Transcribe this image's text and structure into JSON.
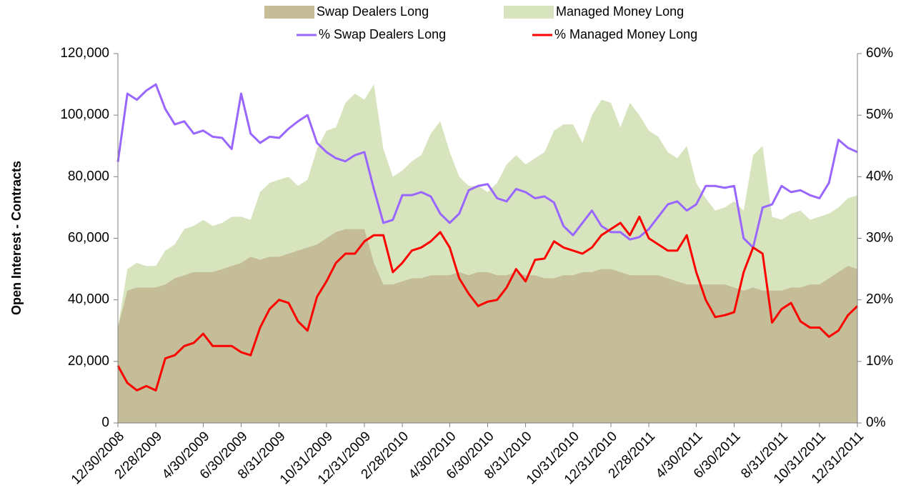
{
  "chart_data": {
    "type": "combo",
    "y_label": "Open Interest - Contracts",
    "legend": "top",
    "categories": [
      "12/30/2008",
      null,
      null,
      null,
      "2/28/2009",
      null,
      null,
      null,
      null,
      "4/30/2009",
      null,
      null,
      null,
      "6/30/2009",
      null,
      null,
      null,
      "8/31/2009",
      null,
      null,
      null,
      null,
      "10/31/2009",
      null,
      null,
      null,
      "12/31/2009",
      null,
      null,
      null,
      "2/28/2010",
      null,
      null,
      null,
      null,
      "4/30/2010",
      null,
      null,
      null,
      "6/30/2010",
      null,
      null,
      null,
      "8/31/2010",
      null,
      null,
      null,
      null,
      "10/31/2010",
      null,
      null,
      null,
      "12/31/2010",
      null,
      null,
      null,
      "2/28/2011",
      null,
      null,
      null,
      null,
      "4/30/2011",
      null,
      null,
      null,
      "6/30/2011",
      null,
      null,
      null,
      null,
      "8/31/2011",
      null,
      null,
      null,
      "10/31/2011",
      null,
      null,
      null,
      "12/31/2011"
    ],
    "series": [
      {
        "name": "Managed Money Long",
        "type": "area",
        "color": "#d7e4bd",
        "values": [
          31000,
          50000,
          52000,
          51000,
          51000,
          56000,
          58000,
          63000,
          64000,
          66000,
          64000,
          65000,
          67000,
          67000,
          66000,
          75000,
          78000,
          79000,
          80000,
          77000,
          79000,
          89000,
          95000,
          96000,
          104000,
          107000,
          105000,
          110000,
          89000,
          80000,
          82000,
          85000,
          87000,
          94000,
          98000,
          88000,
          80000,
          77000,
          77000,
          75000,
          78000,
          84000,
          87000,
          84000,
          86000,
          88000,
          95000,
          97000,
          97000,
          91000,
          100000,
          105000,
          104000,
          96000,
          104000,
          100000,
          95000,
          93000,
          88000,
          86000,
          90000,
          78000,
          73000,
          69000,
          70000,
          72000,
          69000,
          87000,
          90000,
          67000,
          66000,
          68000,
          69000,
          66000,
          67000,
          68000,
          70000,
          73000,
          74000
        ]
      },
      {
        "name": "Swap Dealers Long",
        "type": "area",
        "color": "#c4bd97",
        "values": [
          31000,
          43000,
          44000,
          44000,
          44000,
          45000,
          47000,
          48000,
          49000,
          49000,
          49000,
          50000,
          51000,
          52000,
          54000,
          53000,
          54000,
          54000,
          55000,
          56000,
          57000,
          58000,
          60000,
          62000,
          63000,
          63000,
          63000,
          52000,
          45000,
          45000,
          46000,
          47000,
          47000,
          48000,
          48000,
          48000,
          49000,
          48000,
          49000,
          49000,
          48000,
          48000,
          49000,
          48000,
          48000,
          47000,
          47000,
          48000,
          48000,
          49000,
          49000,
          50000,
          50000,
          49000,
          48000,
          48000,
          48000,
          48000,
          47000,
          46000,
          45000,
          45000,
          45000,
          45000,
          45000,
          44000,
          43000,
          44000,
          43000,
          43000,
          43000,
          44000,
          44000,
          45000,
          45000,
          47000,
          49000,
          51000,
          50000
        ]
      },
      {
        "name": "% Swap Dealers Long",
        "type": "line",
        "axis": "y2",
        "color": "#9966ff",
        "values": [
          42.4,
          53.5,
          52.5,
          54,
          55,
          51,
          48.5,
          49,
          47,
          47.5,
          46.5,
          46.3,
          44.5,
          53.5,
          47,
          45.5,
          46.5,
          46.3,
          47.8,
          49,
          50,
          45.5,
          44,
          43,
          42.5,
          43.5,
          44,
          38,
          32.5,
          33,
          37,
          37,
          37.5,
          36.8,
          34,
          32.5,
          34,
          37.8,
          38.5,
          38.8,
          36.5,
          36,
          38,
          37.5,
          36.5,
          36.8,
          35.8,
          32,
          30.5,
          32.5,
          34.5,
          32,
          31,
          31,
          29.8,
          30.2,
          31.5,
          33.5,
          35.5,
          36,
          34.5,
          35.5,
          38.5,
          38.5,
          38.2,
          38.5,
          30,
          28.5,
          35,
          35.5,
          38.5,
          37.5,
          37.8,
          37,
          36.5,
          39,
          46,
          44.7,
          44
        ]
      },
      {
        "name": "% Managed Money Long",
        "type": "line",
        "axis": "y2",
        "color": "#ff0000",
        "values": [
          9.3,
          6.5,
          5.3,
          6,
          5.3,
          10.5,
          11,
          12.5,
          13,
          14.5,
          12.5,
          12.5,
          12.5,
          11.5,
          11,
          15.5,
          18.5,
          20,
          19.5,
          16.5,
          15,
          20.5,
          23,
          26,
          27.5,
          27.5,
          29.5,
          30.5,
          30.5,
          24.5,
          26,
          28,
          28.5,
          29.5,
          31,
          28.5,
          23.5,
          21,
          19,
          19.7,
          20,
          22,
          25,
          23,
          26.5,
          26.7,
          29.5,
          28.5,
          28,
          27.5,
          28.5,
          30.5,
          31.5,
          32.5,
          30.5,
          33.5,
          30,
          29,
          28,
          28,
          30.5,
          24.5,
          20,
          17.2,
          17.5,
          18,
          24.5,
          28.5,
          27.5,
          16.3,
          18.5,
          19.5,
          16.5,
          15.5,
          15.5,
          14,
          15,
          17.5,
          19
        ]
      }
    ],
    "ylim": [
      0,
      120000
    ],
    "yticks": [
      0,
      {
        "value": 20000,
        "label": "20,000"
      },
      {
        "value": 40000,
        "label": "40,000"
      },
      {
        "value": 60000,
        "label": "60,000"
      },
      {
        "value": 80000,
        "label": "80,000"
      },
      {
        "value": 100000,
        "label": "100,000"
      },
      {
        "value": 120000,
        "label": "120,000"
      }
    ],
    "y2lim": [
      0,
      60
    ],
    "y2ticks": [
      {
        "value": 0,
        "label": "0%"
      },
      {
        "value": 10,
        "label": "10%"
      },
      {
        "value": 20,
        "label": "20%"
      },
      {
        "value": 30,
        "label": "30%"
      },
      {
        "value": 40,
        "label": "40%"
      },
      {
        "value": 50,
        "label": "50%"
      },
      {
        "value": 60,
        "label": "60%"
      }
    ]
  }
}
